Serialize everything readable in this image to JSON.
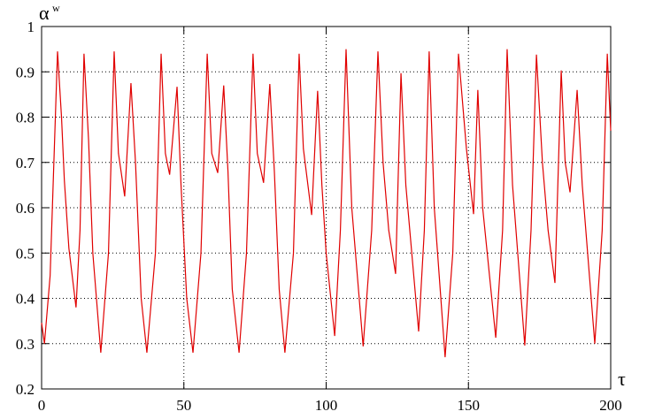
{
  "chart_data": {
    "type": "line",
    "ylabel": "α",
    "ylabel_superscript": "w",
    "xlabel": "τ",
    "xlim": [
      0,
      200
    ],
    "xticks": [
      0,
      50,
      100,
      150,
      200
    ],
    "ylim": [
      0.2,
      1
    ],
    "yticks": [
      0.2,
      0.3,
      0.4,
      0.5,
      0.6,
      0.7,
      0.8,
      0.9,
      1
    ],
    "grid": true,
    "series": [
      {
        "color": "#e00000",
        "x": [
          0,
          1,
          3,
          5.6,
          7,
          8,
          9.6,
          12.1,
          13.5,
          14.9,
          16.5,
          18,
          20.8,
          23.5,
          25.5,
          27,
          29.2,
          31.4,
          33,
          35,
          37,
          40,
          42,
          43.5,
          45,
          47.6,
          49,
          51,
          53.2,
          56,
          58.2,
          59.8,
          61.9,
          64,
          65.5,
          67,
          69.4,
          72,
          74.3,
          75.8,
          78,
          80.2,
          81.8,
          83.5,
          85.5,
          88.5,
          90.5,
          92,
          94.9,
          97,
          98.5,
          100,
          103,
          105,
          107,
          109,
          113,
          116,
          118.2,
          120,
          122,
          124.4,
          126.3,
          128,
          132.5,
          134.5,
          136.2,
          138,
          141.8,
          144.5,
          146.5,
          149.3,
          151.8,
          153.3,
          155,
          159.6,
          162,
          163.6,
          165.5,
          169.8,
          172,
          173.9,
          176,
          178,
          180.4,
          182.6,
          184,
          185.7,
          188.2,
          190,
          194.4,
          197,
          198.8,
          200
        ],
        "values": [
          0.346,
          0.3,
          0.45,
          0.945,
          0.8,
          0.66,
          0.51,
          0.38,
          0.55,
          0.94,
          0.75,
          0.5,
          0.28,
          0.5,
          0.945,
          0.72,
          0.625,
          0.875,
          0.7,
          0.4,
          0.28,
          0.5,
          0.94,
          0.72,
          0.673,
          0.867,
          0.65,
          0.4,
          0.28,
          0.5,
          0.94,
          0.72,
          0.677,
          0.87,
          0.68,
          0.42,
          0.28,
          0.5,
          0.94,
          0.72,
          0.655,
          0.873,
          0.68,
          0.42,
          0.28,
          0.5,
          0.94,
          0.73,
          0.584,
          0.858,
          0.65,
          0.5,
          0.317,
          0.55,
          0.95,
          0.6,
          0.294,
          0.55,
          0.945,
          0.7,
          0.55,
          0.454,
          0.897,
          0.65,
          0.327,
          0.55,
          0.945,
          0.6,
          0.27,
          0.5,
          0.94,
          0.73,
          0.586,
          0.86,
          0.6,
          0.313,
          0.55,
          0.95,
          0.65,
          0.296,
          0.55,
          0.938,
          0.7,
          0.55,
          0.434,
          0.903,
          0.7,
          0.634,
          0.86,
          0.65,
          0.3,
          0.55,
          0.94,
          0.77
        ]
      }
    ]
  }
}
